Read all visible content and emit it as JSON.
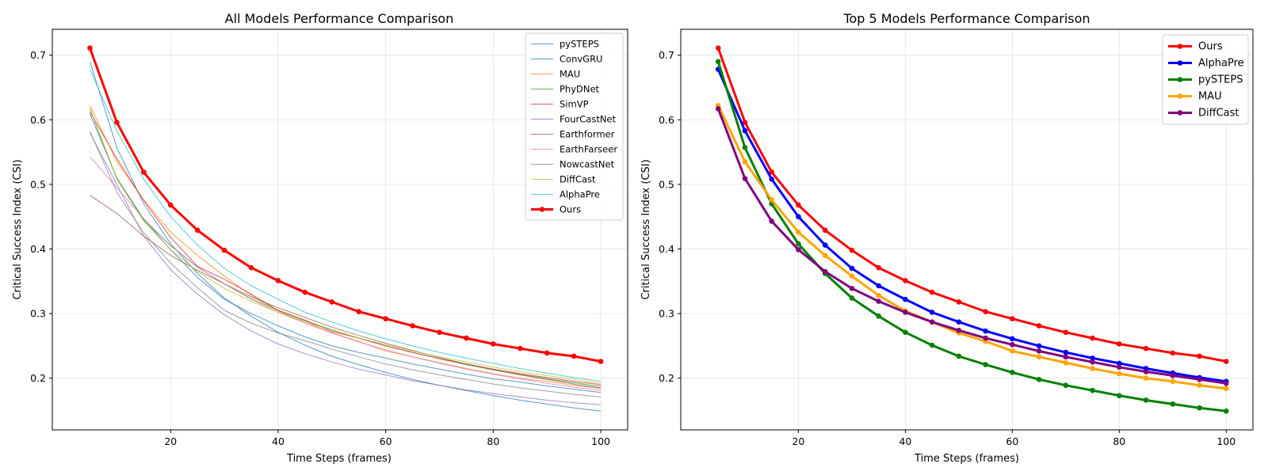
{
  "chart_data": [
    {
      "type": "line",
      "title": "All Models Performance Comparison",
      "xlabel": "Time Steps (frames)",
      "ylabel": "Critical Success Index (CSI)",
      "xlim": [
        -2,
        105
      ],
      "ylim": [
        0.12,
        0.74
      ],
      "xticks": [
        20,
        40,
        60,
        80,
        100
      ],
      "yticks": [
        0.2,
        0.3,
        0.4,
        0.5,
        0.6,
        0.7
      ],
      "x": [
        5,
        10,
        15,
        20,
        25,
        30,
        35,
        40,
        45,
        50,
        55,
        60,
        65,
        70,
        75,
        80,
        85,
        90,
        95,
        100
      ],
      "grid": true,
      "legend": "top-right",
      "series": [
        {
          "name": "pySTEPS",
          "color": "#1f77b4",
          "values": [
            0.69,
            0.557,
            0.47,
            0.408,
            0.362,
            0.324,
            0.296,
            0.271,
            0.251,
            0.234,
            0.221,
            0.209,
            0.198,
            0.189,
            0.181,
            0.173,
            0.166,
            0.16,
            0.154,
            0.149
          ]
        },
        {
          "name": "ConvGRU",
          "color": "#1f77b4",
          "values": [
            0.609,
            0.51,
            0.446,
            0.399,
            0.356,
            0.322,
            0.3,
            0.281,
            0.264,
            0.25,
            0.24,
            0.231,
            0.222,
            0.214,
            0.206,
            0.199,
            0.194,
            0.188,
            0.183,
            0.178
          ]
        },
        {
          "name": "MAU",
          "color": "#ff7f0e",
          "values": [
            0.622,
            0.535,
            0.476,
            0.426,
            0.39,
            0.358,
            0.328,
            0.304,
            0.287,
            0.27,
            0.257,
            0.242,
            0.233,
            0.224,
            0.215,
            0.207,
            0.2,
            0.195,
            0.189,
            0.184
          ]
        },
        {
          "name": "PhyDNet",
          "color": "#2ca02c",
          "values": [
            0.617,
            0.508,
            0.445,
            0.405,
            0.372,
            0.346,
            0.323,
            0.305,
            0.289,
            0.275,
            0.262,
            0.25,
            0.24,
            0.23,
            0.221,
            0.213,
            0.206,
            0.199,
            0.193,
            0.187
          ]
        },
        {
          "name": "SimVP",
          "color": "#d62728",
          "values": [
            0.612,
            0.54,
            0.475,
            0.418,
            0.373,
            0.353,
            0.33,
            0.305,
            0.29,
            0.272,
            0.262,
            0.25,
            0.24,
            0.23,
            0.222,
            0.214,
            0.207,
            0.201,
            0.195,
            0.19
          ]
        },
        {
          "name": "FourCastNet",
          "color": "#9467bd",
          "values": [
            0.58,
            0.5,
            0.42,
            0.368,
            0.33,
            0.298,
            0.273,
            0.253,
            0.238,
            0.225,
            0.214,
            0.205,
            0.196,
            0.189,
            0.182,
            0.176,
            0.171,
            0.166,
            0.162,
            0.159
          ]
        },
        {
          "name": "Earthformer",
          "color": "#8c564b",
          "values": [
            0.483,
            0.455,
            0.42,
            0.39,
            0.367,
            0.346,
            0.326,
            0.309,
            0.294,
            0.279,
            0.266,
            0.254,
            0.243,
            0.232,
            0.222,
            0.213,
            0.205,
            0.198,
            0.191,
            0.185
          ]
        },
        {
          "name": "EarthFarseer",
          "color": "#e377c2",
          "values": [
            0.543,
            0.495,
            0.447,
            0.405,
            0.372,
            0.346,
            0.322,
            0.302,
            0.285,
            0.27,
            0.256,
            0.244,
            0.233,
            0.223,
            0.214,
            0.206,
            0.199,
            0.192,
            0.186,
            0.181
          ]
        },
        {
          "name": "NowcastNet",
          "color": "#7f7f7f",
          "values": [
            0.582,
            0.488,
            0.425,
            0.378,
            0.34,
            0.305,
            0.285,
            0.27,
            0.258,
            0.245,
            0.233,
            0.222,
            0.213,
            0.205,
            0.198,
            0.191,
            0.185,
            0.18,
            0.175,
            0.171
          ]
        },
        {
          "name": "DiffCast",
          "color": "#bcbd22",
          "values": [
            0.617,
            0.509,
            0.443,
            0.399,
            0.365,
            0.339,
            0.319,
            0.302,
            0.287,
            0.274,
            0.262,
            0.252,
            0.242,
            0.233,
            0.225,
            0.217,
            0.21,
            0.204,
            0.198,
            0.192
          ]
        },
        {
          "name": "AlphaPre",
          "color": "#17becf",
          "values": [
            0.678,
            0.583,
            0.508,
            0.45,
            0.406,
            0.37,
            0.343,
            0.322,
            0.302,
            0.287,
            0.273,
            0.261,
            0.25,
            0.24,
            0.231,
            0.223,
            0.215,
            0.208,
            0.201,
            0.195
          ]
        },
        {
          "name": "Ours",
          "color": "#ff0000",
          "emphasis": true,
          "values": [
            0.711,
            0.596,
            0.519,
            0.468,
            0.429,
            0.398,
            0.371,
            0.351,
            0.333,
            0.318,
            0.303,
            0.292,
            0.281,
            0.271,
            0.262,
            0.253,
            0.246,
            0.239,
            0.234,
            0.226
          ]
        }
      ]
    },
    {
      "type": "line",
      "title": "Top 5 Models Performance Comparison",
      "xlabel": "Time Steps (frames)",
      "ylabel": "Critical Success Index (CSI)",
      "xlim": [
        -2,
        105
      ],
      "ylim": [
        0.12,
        0.74
      ],
      "xticks": [
        20,
        40,
        60,
        80,
        100
      ],
      "yticks": [
        0.2,
        0.3,
        0.4,
        0.5,
        0.6,
        0.7
      ],
      "x": [
        5,
        10,
        15,
        20,
        25,
        30,
        35,
        40,
        45,
        50,
        55,
        60,
        65,
        70,
        75,
        80,
        85,
        90,
        95,
        100
      ],
      "grid": true,
      "legend": "top-right",
      "series": [
        {
          "name": "Ours",
          "color": "#ff0000",
          "values": [
            0.711,
            0.596,
            0.519,
            0.468,
            0.429,
            0.398,
            0.371,
            0.351,
            0.333,
            0.318,
            0.303,
            0.292,
            0.281,
            0.271,
            0.262,
            0.253,
            0.246,
            0.239,
            0.234,
            0.226
          ]
        },
        {
          "name": "AlphaPre",
          "color": "#0000ff",
          "values": [
            0.678,
            0.583,
            0.508,
            0.45,
            0.406,
            0.37,
            0.343,
            0.322,
            0.302,
            0.287,
            0.273,
            0.261,
            0.25,
            0.24,
            0.231,
            0.223,
            0.215,
            0.208,
            0.201,
            0.195
          ]
        },
        {
          "name": "pySTEPS",
          "color": "#008000",
          "values": [
            0.69,
            0.557,
            0.47,
            0.408,
            0.362,
            0.324,
            0.296,
            0.271,
            0.251,
            0.234,
            0.221,
            0.209,
            0.198,
            0.189,
            0.181,
            0.173,
            0.166,
            0.16,
            0.154,
            0.149
          ]
        },
        {
          "name": "MAU",
          "color": "#ffa500",
          "values": [
            0.622,
            0.535,
            0.476,
            0.426,
            0.39,
            0.358,
            0.328,
            0.304,
            0.287,
            0.27,
            0.257,
            0.242,
            0.233,
            0.224,
            0.215,
            0.207,
            0.2,
            0.195,
            0.189,
            0.184
          ]
        },
        {
          "name": "DiffCast",
          "color": "#800080",
          "values": [
            0.617,
            0.509,
            0.443,
            0.399,
            0.365,
            0.339,
            0.319,
            0.302,
            0.287,
            0.274,
            0.262,
            0.252,
            0.242,
            0.233,
            0.225,
            0.217,
            0.21,
            0.204,
            0.198,
            0.192
          ]
        }
      ]
    }
  ]
}
